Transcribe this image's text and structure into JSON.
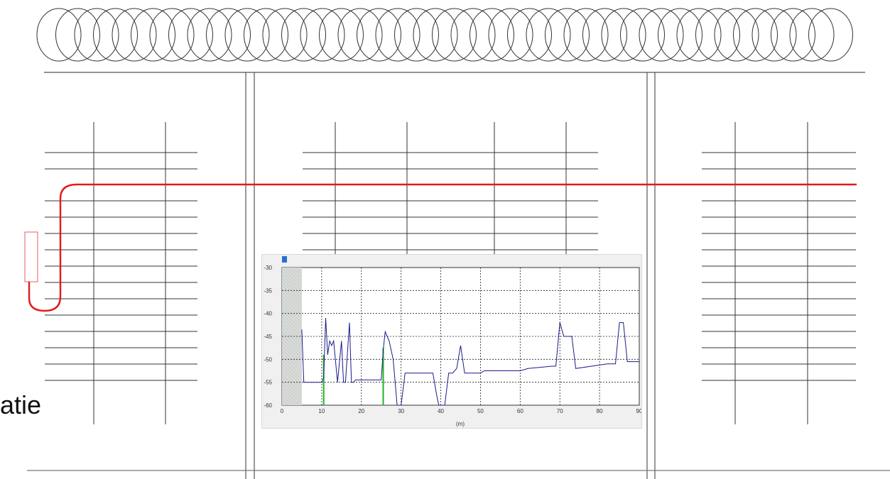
{
  "side_label": "atie",
  "colors": {
    "cable": "#e11b1b",
    "structure": "#333333",
    "sensor_box": "#e06060",
    "trace": "#1a1a8c",
    "event_marker": "#22b422",
    "chart_panel": "#f0f0f0"
  },
  "chart_data": {
    "type": "line",
    "title": "",
    "xlabel": "(m)",
    "ylabel": "",
    "xlim": [
      0,
      90
    ],
    "ylim": [
      -60,
      -30
    ],
    "xticks": [
      "0",
      "10",
      "20",
      "30",
      "40",
      "50",
      "60",
      "70",
      "80",
      "90"
    ],
    "yticks": [
      "-30",
      "-35",
      "-40",
      "-45",
      "-50",
      "-55",
      "-60"
    ],
    "grid": true,
    "dead_zone": [
      0,
      5
    ],
    "series": [
      {
        "x": [
          5,
          5.5,
          10,
          10.5,
          11,
          11.5,
          12,
          12.5,
          13,
          14,
          15,
          15.5,
          16,
          17,
          17.5,
          18,
          18.5,
          19,
          25,
          25.5,
          26,
          27,
          28,
          29,
          30,
          31,
          38,
          39,
          39.5,
          40,
          41,
          42,
          43,
          44,
          45,
          46,
          50,
          51,
          60,
          62,
          68,
          69,
          70,
          71,
          72,
          73,
          74,
          82,
          83,
          84,
          85,
          86,
          87,
          90
        ],
        "values": [
          -43.5,
          -55,
          -55,
          -54,
          -41,
          -49,
          -46,
          -47,
          -46,
          -55,
          -46,
          -55,
          -55,
          -42,
          -55,
          -55,
          -54.5,
          -54.5,
          -54.5,
          -48,
          -44,
          -46,
          -50,
          -60,
          -60,
          -53,
          -53,
          -58,
          -60,
          -60,
          -60,
          -53,
          -53,
          -52,
          -47,
          -53,
          -53,
          -52.5,
          -52.5,
          -52,
          -51.5,
          -51.5,
          -42,
          -45,
          -45,
          -45,
          -52,
          -51,
          -51,
          -51,
          -42,
          -42,
          -50.5,
          -50.5
        ]
      }
    ],
    "events": [
      {
        "x": 10.5,
        "y": -49
      },
      {
        "x": 25.5,
        "y": -47.5
      }
    ]
  }
}
